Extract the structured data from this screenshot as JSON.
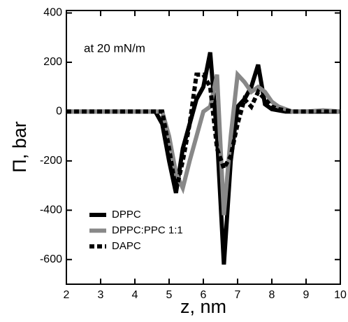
{
  "chart_data": {
    "type": "line",
    "xlabel": "z, nm",
    "ylabel": "Π, bar",
    "annotation": "at 20 mN/m",
    "x": [
      2,
      4.6,
      4.8,
      5.0,
      5.2,
      5.4,
      5.6,
      5.8,
      6.0,
      6.2,
      6.4,
      6.6,
      6.8,
      7.0,
      7.2,
      7.4,
      7.6,
      7.8,
      8.0,
      8.2,
      8.4,
      8.6,
      9.0,
      9.5,
      10
    ],
    "series": [
      {
        "name": "DPPC",
        "color": "#000000",
        "dash": false,
        "values": [
          0,
          0,
          -50,
          -200,
          -330,
          -150,
          -50,
          50,
          100,
          240,
          -100,
          -620,
          -200,
          20,
          50,
          100,
          190,
          30,
          10,
          5,
          0,
          0,
          0,
          0,
          0
        ]
      },
      {
        "name": "DPPC:PPC 1:1",
        "color": "#888888",
        "dash": false,
        "values": [
          0,
          0,
          0,
          -100,
          -250,
          -310,
          -200,
          -100,
          0,
          20,
          150,
          -420,
          -100,
          150,
          120,
          80,
          100,
          80,
          40,
          20,
          10,
          0,
          0,
          5,
          0
        ]
      },
      {
        "name": "DAPC",
        "color": "#000000",
        "dash": true,
        "values": [
          0,
          0,
          0,
          -150,
          -320,
          -200,
          -50,
          150,
          150,
          100,
          -150,
          -230,
          -180,
          -50,
          50,
          20,
          80,
          50,
          20,
          10,
          5,
          0,
          0,
          0,
          0
        ]
      }
    ],
    "xlim": [
      2,
      10
    ],
    "xticks": [
      2,
      3,
      4,
      5,
      6,
      7,
      8,
      9,
      10
    ],
    "ylim": [
      -700,
      410
    ],
    "yticks": [
      -600,
      -400,
      -200,
      0,
      200,
      400
    ],
    "grid": false,
    "legend": "lower-left"
  }
}
